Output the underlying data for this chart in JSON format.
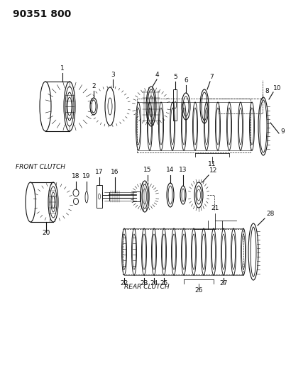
{
  "title": "90351 800",
  "bg": "#ffffff",
  "lc": "#111111",
  "lw": 0.8,
  "fig_w": 4.03,
  "fig_h": 5.33,
  "label_fs": 6.5,
  "front_clutch_label": "FRONT CLUTCH",
  "rear_clutch_label": "REAR CLUTCH"
}
